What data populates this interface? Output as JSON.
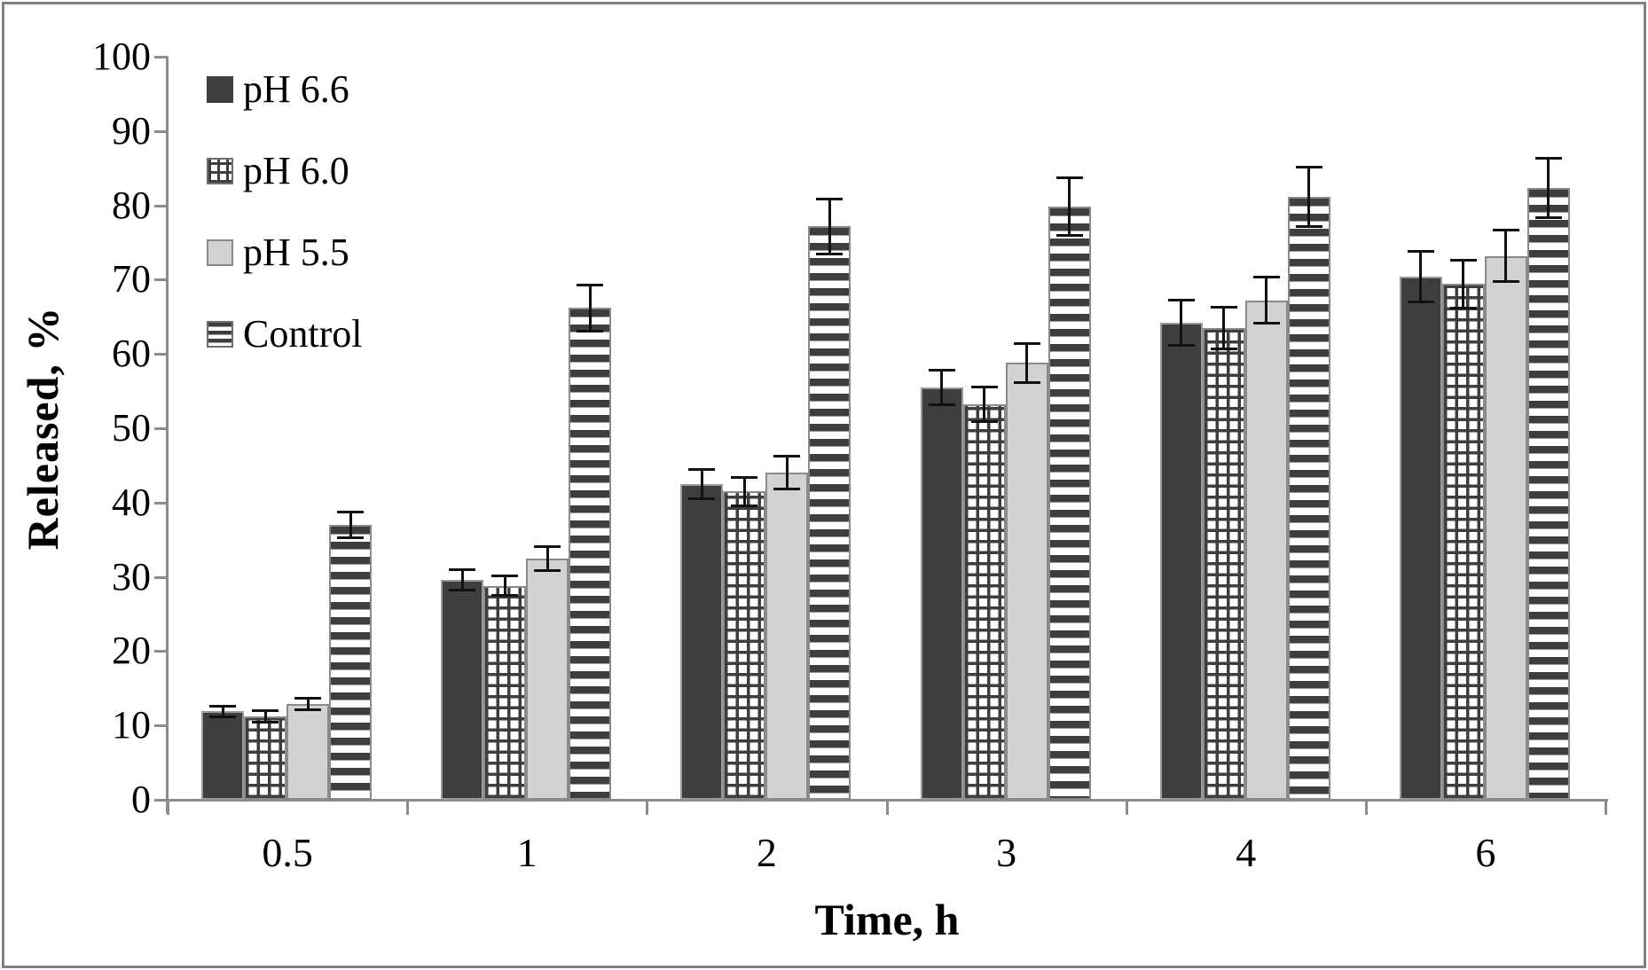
{
  "figure": {
    "background_color": "#ffffff",
    "border_color": "#7f7f7f"
  },
  "chart_data": {
    "type": "bar",
    "title": "",
    "xlabel": "Time, h",
    "ylabel": "Released, %",
    "ylim": [
      0,
      100
    ],
    "yticks": [
      0,
      10,
      20,
      30,
      40,
      50,
      60,
      70,
      80,
      90,
      100
    ],
    "categories": [
      "0.5",
      "1",
      "2",
      "3",
      "4",
      "6"
    ],
    "grid": false,
    "legend_position": "upper-left-inside",
    "axis_color": "#8c8c8c",
    "error_bar_color": "#111111",
    "bar_dark_color": "#3e3e3e",
    "bar_light_color": "#d2d2d2",
    "series": [
      {
        "name": "pH 6.6",
        "pattern": "solid-dark",
        "values": [
          11.9,
          29.6,
          42.5,
          55.5,
          64.2,
          70.4
        ],
        "errors": [
          0.7,
          1.4,
          2.0,
          2.3,
          3.1,
          3.4
        ]
      },
      {
        "name": "pH 6.0",
        "pattern": "crosshatch",
        "values": [
          11.2,
          28.8,
          41.5,
          53.2,
          63.5,
          69.4
        ],
        "errors": [
          0.8,
          1.3,
          1.9,
          2.3,
          2.8,
          3.2
        ]
      },
      {
        "name": "pH 5.5",
        "pattern": "solid-light",
        "values": [
          12.9,
          32.5,
          44.0,
          58.8,
          67.2,
          73.2
        ],
        "errors": [
          0.8,
          1.6,
          2.2,
          2.6,
          3.1,
          3.5
        ]
      },
      {
        "name": "Control",
        "pattern": "h-stripes",
        "values": [
          37.0,
          66.2,
          77.2,
          79.8,
          81.2,
          82.3
        ],
        "errors": [
          1.7,
          3.1,
          3.7,
          3.9,
          4.0,
          4.0
        ]
      }
    ]
  }
}
